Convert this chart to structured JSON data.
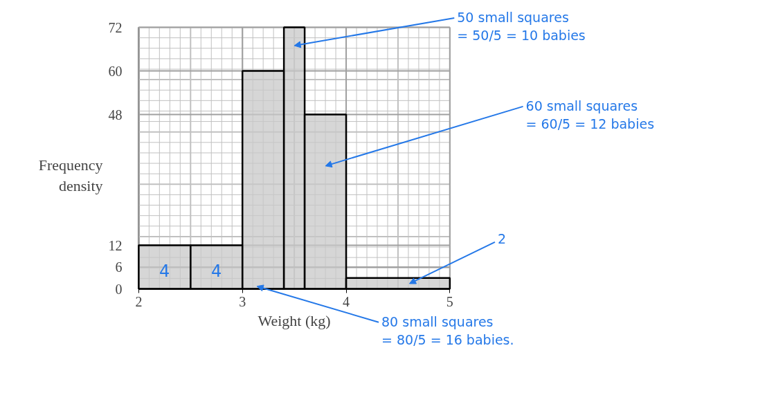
{
  "chart_data": {
    "type": "histogram",
    "xlabel": "Weight (kg)",
    "ylabel": "Frequency\ndensity",
    "bins": [
      2,
      2.5,
      3,
      3.4,
      3.6,
      4,
      5
    ],
    "values": [
      12,
      12,
      60,
      72,
      48,
      3
    ],
    "color": "#c8c8c8",
    "xlim": [
      2,
      5
    ],
    "ylim": [
      0,
      72
    ],
    "xticks": [
      2,
      3,
      4,
      5
    ],
    "yticks": [
      0,
      6,
      12,
      48,
      60,
      72
    ],
    "grid": true,
    "annotations": [
      "50 small squares\n= 50/5 = 10 babies",
      "60 small squares\n= 60/5 = 12 babies",
      "2",
      "80 small squares\n= 80/5 = 16 babies.",
      "4",
      "4"
    ]
  }
}
